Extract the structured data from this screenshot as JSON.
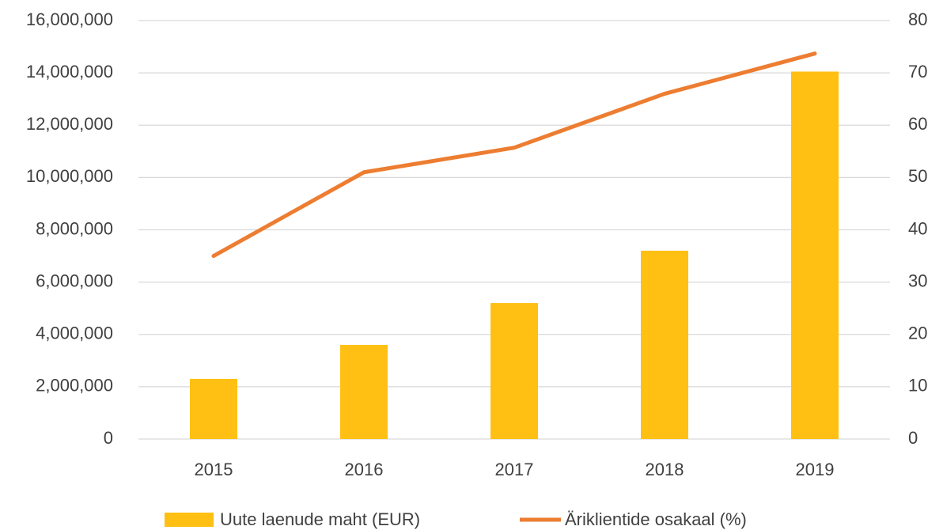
{
  "chart_data": {
    "type": "bar_line",
    "categories": [
      "2015",
      "2016",
      "2017",
      "2018",
      "2019"
    ],
    "series": [
      {
        "name": "Uute laenude maht (EUR)",
        "type": "bar",
        "color": "#FFC013",
        "values": [
          2300000,
          3600000,
          5200000,
          7200000,
          14050000
        ]
      },
      {
        "name": "Äriklientide osakaal (%)",
        "type": "line",
        "axis": "y2",
        "color": "#ED7D31",
        "values": [
          35,
          51,
          55.7,
          66,
          73.7
        ]
      }
    ],
    "ylim": [
      0,
      16000000
    ],
    "yticks": [
      0,
      {
        "value": 2000000,
        "label": "2,000,000"
      },
      {
        "value": 4000000,
        "label": "4,000,000"
      },
      {
        "value": 6000000,
        "label": "6,000,000"
      },
      {
        "value": 8000000,
        "label": "8,000,000"
      },
      {
        "value": 10000000,
        "label": "10,000,000"
      },
      {
        "value": 12000000,
        "label": "12,000,000"
      },
      {
        "value": 14000000,
        "label": "14,000,000"
      },
      {
        "value": 16000000,
        "label": "16,000,000"
      }
    ],
    "y2lim": [
      0,
      80
    ],
    "y2ticks": [
      0,
      10,
      20,
      30,
      40,
      50,
      60,
      70,
      80
    ],
    "grid": true,
    "legend": "bottom"
  }
}
